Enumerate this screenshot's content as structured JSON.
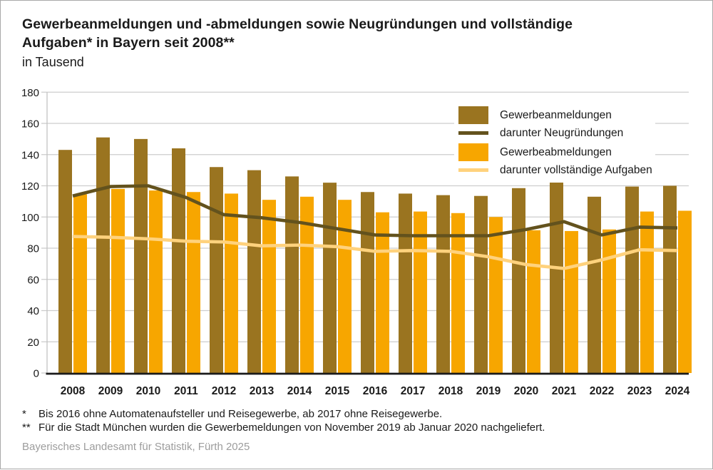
{
  "title": {
    "line1": "Gewerbeanmeldungen und -abmeldungen sowie Neugründungen und vollständige",
    "line2": "Aufgaben* in Bayern seit 2008**",
    "subtitle": "in Tausend"
  },
  "footnotes": [
    {
      "marker": "*",
      "text": "Bis 2016 ohne Automatenaufsteller und Reisegewerbe, ab 2017 ohne Reisegewerbe."
    },
    {
      "marker": "**",
      "text": "Für die Stadt München wurden die Gewerbemeldungen von November 2019 ab Januar 2020 nachgeliefert."
    }
  ],
  "source": "Bayerisches Landesamt für Statistik, Fürth 2025",
  "colors": {
    "grid": "#cdcdcd",
    "y_axis": "#c3c3c3",
    "x_axis": "#1a1a1a",
    "text": "#1a1a1a",
    "source_text": "#9d9d9d",
    "frame_border": "#a9a9a9"
  },
  "chart_data": {
    "type": "bar+line",
    "title": "Gewerbeanmeldungen und -abmeldungen sowie Neugründungen und vollständige Aufgaben in Bayern seit 2008",
    "unit_label": "in Tausend",
    "categories": [
      "2008",
      "2009",
      "2010",
      "2011",
      "2012",
      "2013",
      "2014",
      "2015",
      "2016",
      "2017",
      "2018",
      "2019",
      "2020",
      "2021",
      "2022",
      "2023",
      "2024"
    ],
    "series": [
      {
        "id": "anmeldungen",
        "name": "Gewerbeanmeldungen",
        "type": "bar",
        "color": "#9a7420",
        "values": [
          143,
          151,
          150,
          144,
          132,
          130,
          126,
          122,
          116,
          115,
          114,
          113.5,
          118.5,
          123,
          113,
          119.5,
          120
        ]
      },
      {
        "id": "neugruendungen",
        "name": "darunter Neugründungen",
        "type": "line",
        "color": "#63521d",
        "values": [
          113.5,
          119.5,
          120,
          112.5,
          101.5,
          99.5,
          96.5,
          92.5,
          88.5,
          88,
          88,
          88,
          92,
          97,
          88.5,
          93.5,
          93
        ]
      },
      {
        "id": "abmeldungen",
        "name": "Gewerbeabmeldungen",
        "type": "bar",
        "color": "#f7a600",
        "values": [
          114.5,
          118,
          117,
          116,
          115,
          111,
          113,
          111,
          103,
          103.5,
          102.5,
          100,
          91.5,
          91,
          92,
          103.5,
          104
        ]
      },
      {
        "id": "aufgaben",
        "name": "darunter vollständige Aufgaben",
        "type": "line",
        "color": "#ffd27d",
        "values": [
          87.5,
          87,
          86,
          84.5,
          84,
          81.5,
          82,
          81,
          78,
          78.5,
          78,
          74.5,
          69.5,
          67,
          72.5,
          79,
          78.5
        ]
      }
    ],
    "ylim": [
      0,
      180
    ],
    "ytick_step": 20,
    "grid": true,
    "legend_position": "top-right-inside"
  }
}
